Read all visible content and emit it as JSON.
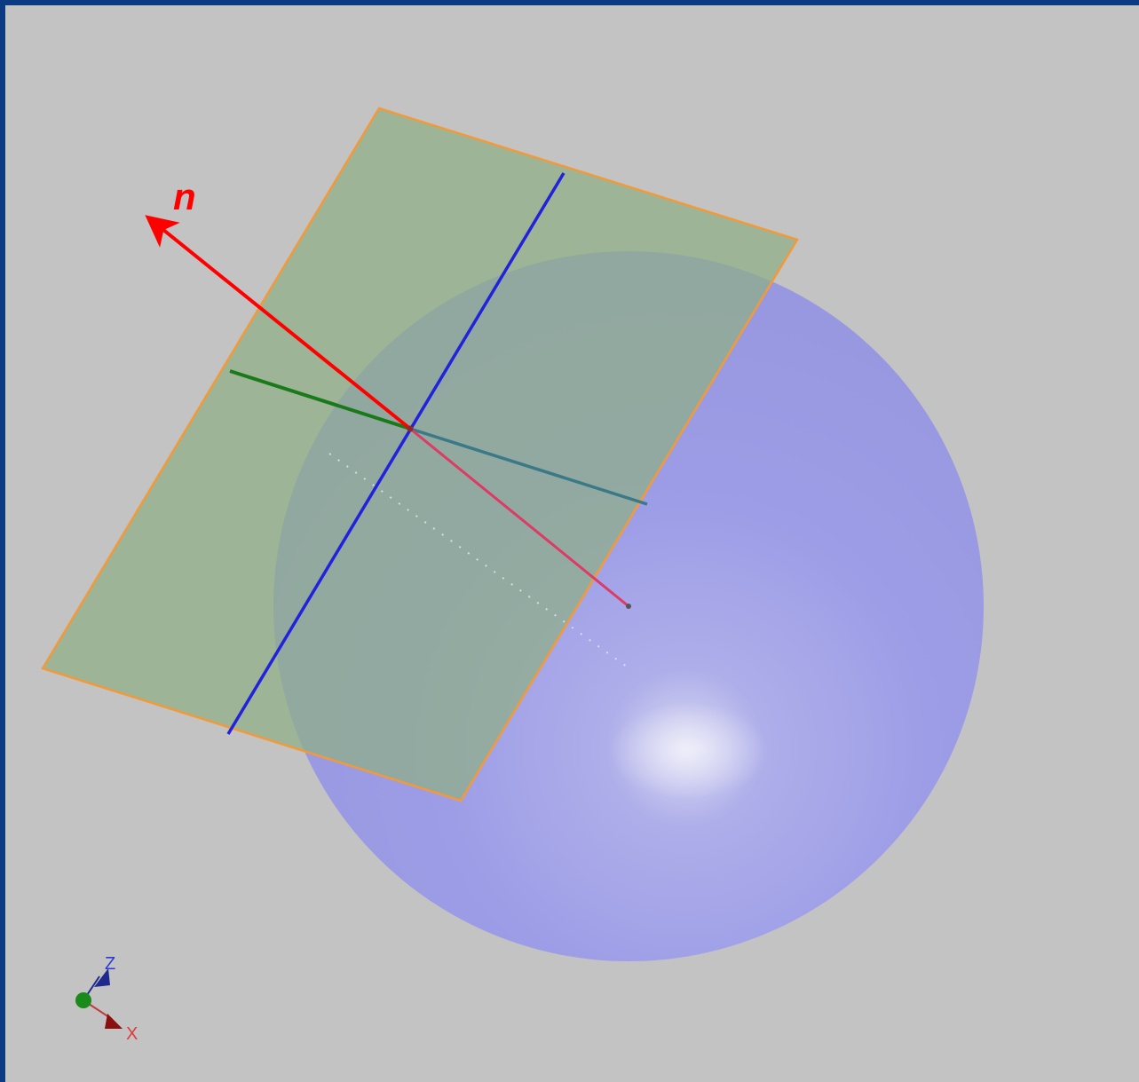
{
  "viewport": {
    "background": "#c3c3c3",
    "frame_color": "#0c3a82"
  },
  "scene": {
    "normal_vector": {
      "label": "n",
      "color": "#ff0000"
    },
    "plane": {
      "fill": "#8fae86",
      "edge": "#f29a3a"
    },
    "sphere": {
      "color": "#9a9af0"
    },
    "plane_axes": {
      "blue": "#2222dd",
      "green": "#1a7a1a"
    }
  },
  "axis_triad": {
    "z_label": "Z",
    "x_label": "X",
    "z_color": "#1f2a8c",
    "x_color": "#8a1010",
    "y_color": "#1a8a1a"
  }
}
